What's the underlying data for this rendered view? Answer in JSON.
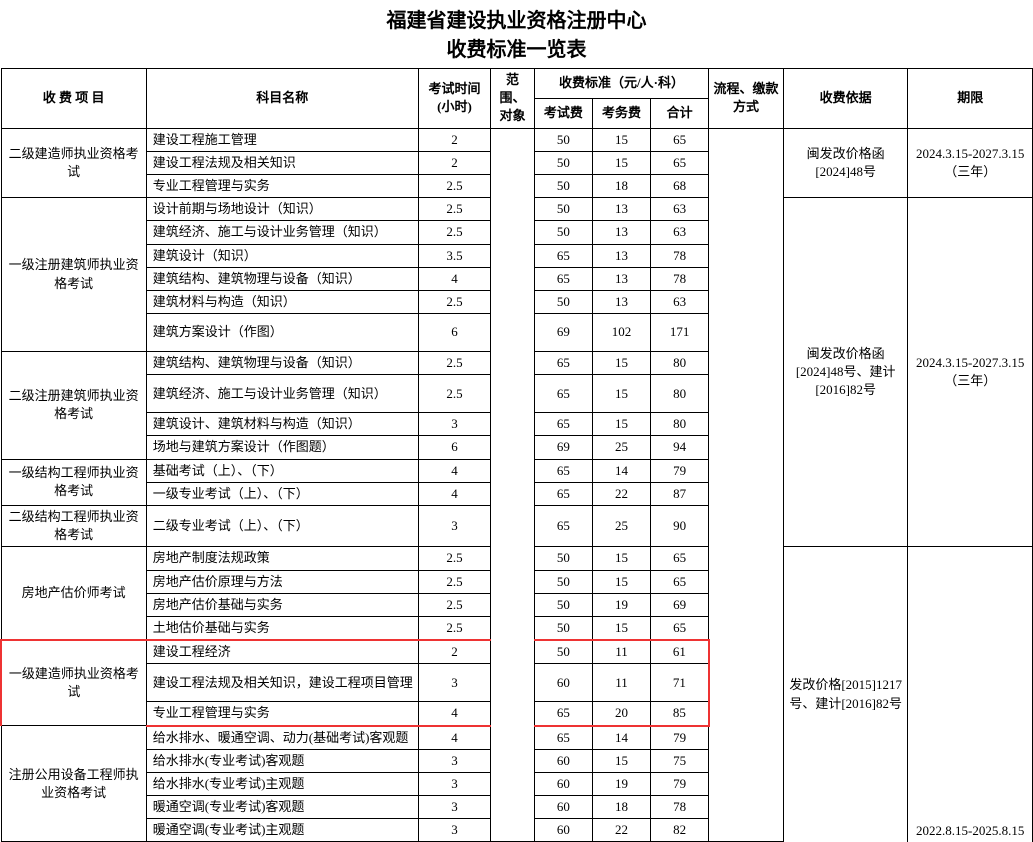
{
  "title": "福建省建设执业资格注册中心",
  "subtitle": "收费标准一览表",
  "headers": {
    "project": "收 费 项 目",
    "subject": "科目名称",
    "hours": "考试时间(小时)",
    "scope": "范围、对象",
    "fee_group": "收费标准（元/人·科）",
    "fee_exam": "考试费",
    "fee_svc": "考务费",
    "fee_total": "合计",
    "process": "流程、缴款方式",
    "basis": "收费依据",
    "term": "期限"
  },
  "groups": [
    {
      "name": "二级建造师执业资格考试",
      "basis": "闽发改价格函[2024]48号",
      "term": "2024.3.15-2027.3.15（三年）",
      "rows": [
        {
          "s": "建设工程施工管理",
          "h": "2",
          "a": "50",
          "b": "15",
          "t": "65"
        },
        {
          "s": "建设工程法规及相关知识",
          "h": "2",
          "a": "50",
          "b": "15",
          "t": "65"
        },
        {
          "s": "专业工程管理与实务",
          "h": "2.5",
          "a": "50",
          "b": "18",
          "t": "68"
        }
      ]
    },
    {
      "name": "一级注册建筑师执业资格考试",
      "basis": "闽发改价格函[2024]48号、建计[2016]82号",
      "term": "2024.3.15-2027.3.15（三年）",
      "rows": [
        {
          "s": "设计前期与场地设计（知识）",
          "h": "2.5",
          "a": "50",
          "b": "13",
          "t": "63"
        },
        {
          "s": "建筑经济、施工与设计业务管理（知识）",
          "h": "2.5",
          "a": "50",
          "b": "13",
          "t": "63"
        },
        {
          "s": "建筑设计（知识）",
          "h": "3.5",
          "a": "65",
          "b": "13",
          "t": "78"
        },
        {
          "s": "建筑结构、建筑物理与设备（知识）",
          "h": "4",
          "a": "65",
          "b": "13",
          "t": "78"
        },
        {
          "s": "建筑材料与构造（知识）",
          "h": "2.5",
          "a": "50",
          "b": "13",
          "t": "63"
        },
        {
          "s": "建筑方案设计（作图）",
          "h": "6",
          "a": "69",
          "b": "102",
          "t": "171",
          "tall": true
        }
      ]
    },
    {
      "name": "二级注册建筑师执业资格考试",
      "rows": [
        {
          "s": "建筑结构、建筑物理与设备（知识）",
          "h": "2.5",
          "a": "65",
          "b": "15",
          "t": "80"
        },
        {
          "s": "建筑经济、施工与设计业务管理（知识）",
          "h": "2.5",
          "a": "65",
          "b": "15",
          "t": "80",
          "tall": true
        },
        {
          "s": "建筑设计、建筑材料与构造（知识）",
          "h": "3",
          "a": "65",
          "b": "15",
          "t": "80"
        },
        {
          "s": "场地与建筑方案设计（作图题）",
          "h": "6",
          "a": "69",
          "b": "25",
          "t": "94"
        }
      ]
    },
    {
      "name": "一级结构工程师执业资格考试",
      "rows": [
        {
          "s": "基础考试（上）、（下）",
          "h": "4",
          "a": "65",
          "b": "14",
          "t": "79"
        },
        {
          "s": "一级专业考试（上）、（下）",
          "h": "4",
          "a": "65",
          "b": "22",
          "t": "87"
        }
      ]
    },
    {
      "name": "二级结构工程师执业资格考试",
      "cut": true,
      "rows": [
        {
          "s": "二级专业考试（上）、（下）",
          "h": "3",
          "a": "65",
          "b": "25",
          "t": "90",
          "tall": true
        }
      ]
    },
    {
      "name": "房地产估价师考试",
      "basis": "发改价格[2015]1217号、建计[2016]82号",
      "term": "2022.8.15-2025.8.15",
      "rows": [
        {
          "s": "房地产制度法规政策",
          "h": "2.5",
          "a": "50",
          "b": "15",
          "t": "65"
        },
        {
          "s": "房地产估价原理与方法",
          "h": "2.5",
          "a": "50",
          "b": "15",
          "t": "65"
        },
        {
          "s": "房地产估价基础与实务",
          "h": "2.5",
          "a": "50",
          "b": "19",
          "t": "69"
        },
        {
          "s": "土地估价基础与实务",
          "h": "2.5",
          "a": "50",
          "b": "15",
          "t": "65"
        }
      ]
    },
    {
      "name": "一级建造师执业资格考试",
      "highlight": true,
      "rows": [
        {
          "s": "建设工程经济",
          "h": "2",
          "a": "50",
          "b": "11",
          "t": "61"
        },
        {
          "s": "建设工程法规及相关知识，建设工程项目管理",
          "h": "3",
          "a": "60",
          "b": "11",
          "t": "71",
          "tall": true
        },
        {
          "s": "专业工程管理与实务",
          "h": "4",
          "a": "65",
          "b": "20",
          "t": "85"
        }
      ]
    },
    {
      "name": "注册公用设备工程师执业资格考试",
      "rows": [
        {
          "s": "给水排水、暖通空调、动力(基础考试)客观题",
          "h": "4",
          "a": "65",
          "b": "14",
          "t": "79"
        },
        {
          "s": "给水排水(专业考试)客观题",
          "h": "3",
          "a": "60",
          "b": "15",
          "t": "75"
        },
        {
          "s": "给水排水(专业考试)主观题",
          "h": "3",
          "a": "60",
          "b": "19",
          "t": "79"
        },
        {
          "s": "暖通空调(专业考试)客观题",
          "h": "3",
          "a": "60",
          "b": "18",
          "t": "78"
        },
        {
          "s": "暖通空调(专业考试)主观题",
          "h": "3",
          "a": "60",
          "b": "22",
          "t": "82"
        }
      ]
    }
  ]
}
